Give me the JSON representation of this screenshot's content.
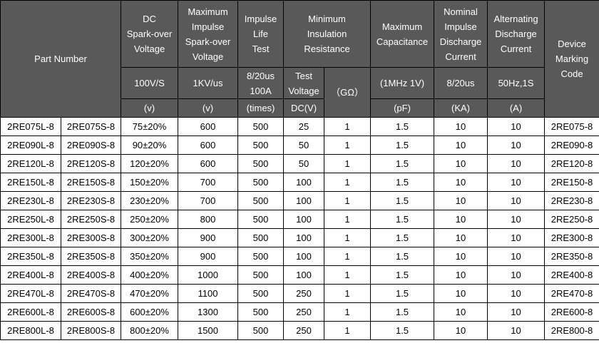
{
  "colors": {
    "header_bg": "#595959",
    "header_text": "#ffffff",
    "border": "#000000",
    "body_bg": "#ffffff",
    "body_text": "#000000"
  },
  "header": {
    "part_number": "Part Number",
    "dc_sparkover": {
      "title": "DC\nSpark-over\nVoltage",
      "condition": "100V/S",
      "unit": "(v)"
    },
    "max_impulse_sparkover": {
      "title": "Maximum\nImpulse\nSpark-over\nVoltage",
      "condition": "1KV/us",
      "unit": "(v)"
    },
    "impulse_life": {
      "title": "Impulse\nLife\nTest",
      "condition": "8/20us\n100A",
      "unit": "(times)"
    },
    "insulation": {
      "title": "Minimum\nInsulation\nResistance",
      "test_voltage": "Test\nVoltage",
      "test_voltage_unit": "DC(V)",
      "gohm": "（GΩ）"
    },
    "capacitance": {
      "title": "Maximum\nCapacitance",
      "condition": "(1MHz 1V)",
      "unit": "(pF)"
    },
    "nominal_discharge": {
      "title": "Nominal\nImpulse\nDischarge\nCurrent",
      "condition": "8/20us",
      "unit": "(KA)"
    },
    "alternating_discharge": {
      "title": "Alternating\nDischarge\nCurrent",
      "condition": "50Hz,1S",
      "unit": "(A)"
    },
    "marking": {
      "title": "Device\nMarking\nCode"
    }
  },
  "rows": [
    [
      "2RE075L-8",
      "2RE075S-8",
      "75±20%",
      "600",
      "500",
      "25",
      "1",
      "1.5",
      "10",
      "10",
      "2RE075-8"
    ],
    [
      "2RE090L-8",
      "2RE090S-8",
      "90±20%",
      "600",
      "500",
      "50",
      "1",
      "1.5",
      "10",
      "10",
      "2RE090-8"
    ],
    [
      "2RE120L-8",
      "2RE120S-8",
      "120±20%",
      "600",
      "500",
      "50",
      "1",
      "1.5",
      "10",
      "10",
      "2RE120-8"
    ],
    [
      "2RE150L-8",
      "2RE150S-8",
      "150±20%",
      "700",
      "500",
      "100",
      "1",
      "1.5",
      "10",
      "10",
      "2RE150-8"
    ],
    [
      "2RE230L-8",
      "2RE230S-8",
      "230±20%",
      "700",
      "500",
      "100",
      "1",
      "1.5",
      "10",
      "10",
      "2RE230-8"
    ],
    [
      "2RE250L-8",
      "2RE250S-8",
      "250±20%",
      "800",
      "500",
      "100",
      "1",
      "1.5",
      "10",
      "10",
      "2RE250-8"
    ],
    [
      "2RE300L-8",
      "2RE300S-8",
      "300±20%",
      "900",
      "500",
      "100",
      "1",
      "1.5",
      "10",
      "10",
      "2RE300-8"
    ],
    [
      "2RE350L-8",
      "2RE350S-8",
      "350±20%",
      "900",
      "500",
      "100",
      "1",
      "1.5",
      "10",
      "10",
      "2RE350-8"
    ],
    [
      "2RE400L-8",
      "2RE400S-8",
      "400±20%",
      "1000",
      "500",
      "100",
      "1",
      "1.5",
      "10",
      "10",
      "2RE400-8"
    ],
    [
      "2RE470L-8",
      "2RE470S-8",
      "470±20%",
      "1100",
      "500",
      "250",
      "1",
      "1.5",
      "10",
      "10",
      "2RE470-8"
    ],
    [
      "2RE600L-8",
      "2RE600S-8",
      "600±20%",
      "1300",
      "500",
      "250",
      "1",
      "1.5",
      "10",
      "10",
      "2RE600-8"
    ],
    [
      "2RE800L-8",
      "2RE800S-8",
      "800±20%",
      "1500",
      "500",
      "250",
      "1",
      "1.5",
      "10",
      "10",
      "2RE800-8"
    ]
  ]
}
